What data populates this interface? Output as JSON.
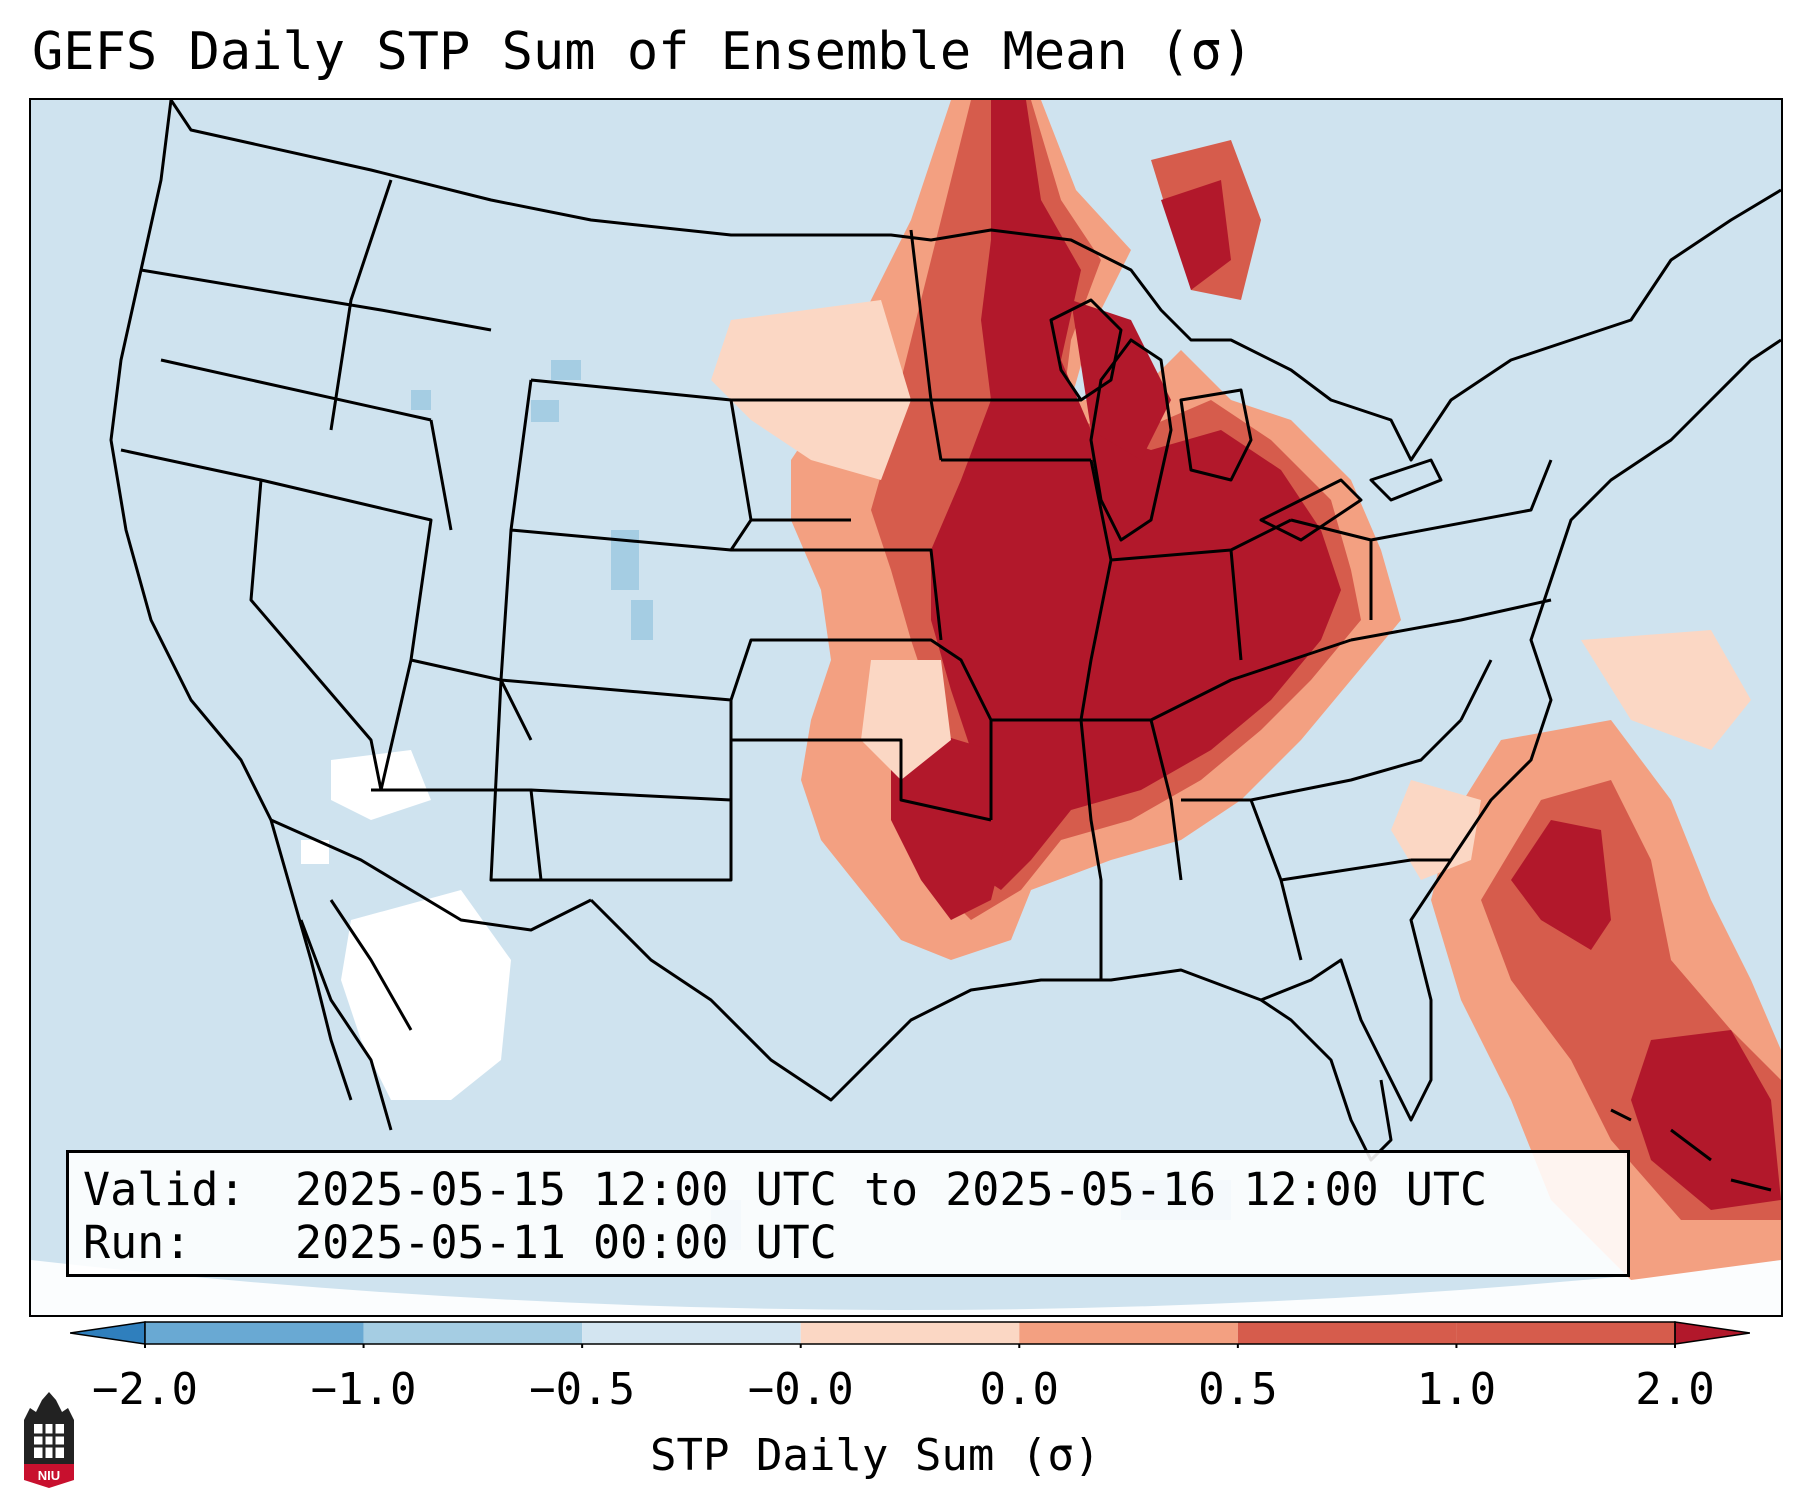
{
  "title": "GEFS Daily STP Sum of Ensemble Mean (σ)",
  "info": {
    "valid_label": "Valid:",
    "valid_value": "2025-05-15 12:00 UTC to 2025-05-16 12:00 UTC",
    "run_label": "Run:",
    "run_value": "2025-05-11 00:00 UTC"
  },
  "colorbar": {
    "label": "STP Daily Sum (σ)",
    "ticks": [
      "−2.0",
      "−1.0",
      "−0.5",
      "−0.0",
      "0.0",
      "0.5",
      "1.0",
      "2.0"
    ],
    "colors": [
      "#2f7fbd",
      "#69a9d3",
      "#a5cde3",
      "#d3e5f1",
      "#fbd7c4",
      "#f3a081",
      "#d65c4c",
      "#b2182b"
    ],
    "extend": "both"
  },
  "legend_colors": {
    "background_near_zero": "#cfe3ef",
    "strong_positive": "#b2182b",
    "positive": "#d65c4c",
    "weak_positive": "#f3a081",
    "slight_positive": "#fbd7c4",
    "slight_negative": "#a5cde3",
    "near_zero_positive": "#ffffff"
  },
  "logo": {
    "icon": "niu-logo-icon",
    "text": "NIU"
  }
}
